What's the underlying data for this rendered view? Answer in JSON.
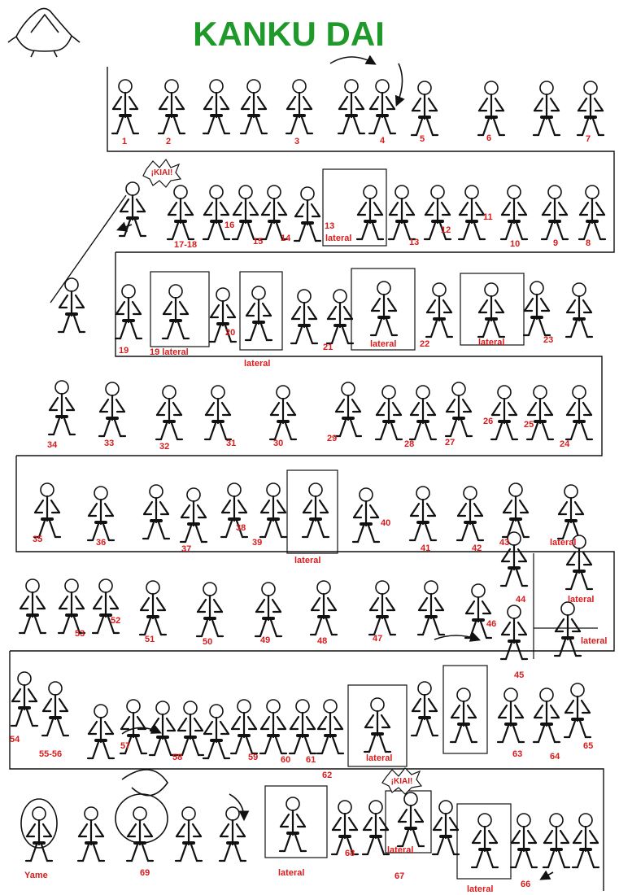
{
  "title": "KANKU DAI",
  "colors": {
    "title": "#1f9a2a",
    "numbers": "#d81c1c",
    "ink": "#111111",
    "background": "#ffffff"
  },
  "kiai_label": "¡KIAI!",
  "num_labels": [
    "1",
    "2",
    "3",
    "4",
    "5",
    "6",
    "7",
    "17-18",
    "16",
    "15",
    "14",
    "13",
    "lateral",
    "13",
    "12",
    "11",
    "10",
    "9",
    "8",
    "19",
    "19 lateral",
    "20",
    "lateral",
    "21",
    "lateral",
    "22",
    "lateral",
    "23",
    "34",
    "33",
    "32",
    "31",
    "30",
    "29",
    "28",
    "27",
    "26",
    "25",
    "24",
    "35",
    "36",
    "37",
    "38",
    "39",
    "lateral",
    "40",
    "41",
    "42",
    "43",
    "lateral",
    "53",
    "52",
    "51",
    "50",
    "49",
    "48",
    "47",
    "46",
    "44",
    "lateral",
    "lateral",
    "45",
    "54",
    "55-56",
    "57",
    "58",
    "59",
    "60",
    "61",
    "62",
    "lateral",
    "63",
    "64",
    "65",
    "Yame",
    "69",
    "lateral",
    "68",
    "lateral",
    "67",
    "lateral",
    "66"
  ],
  "icons": [
    "triangle-hands-icon",
    "karate-figure-icon",
    "direction-arrow-icon"
  ]
}
